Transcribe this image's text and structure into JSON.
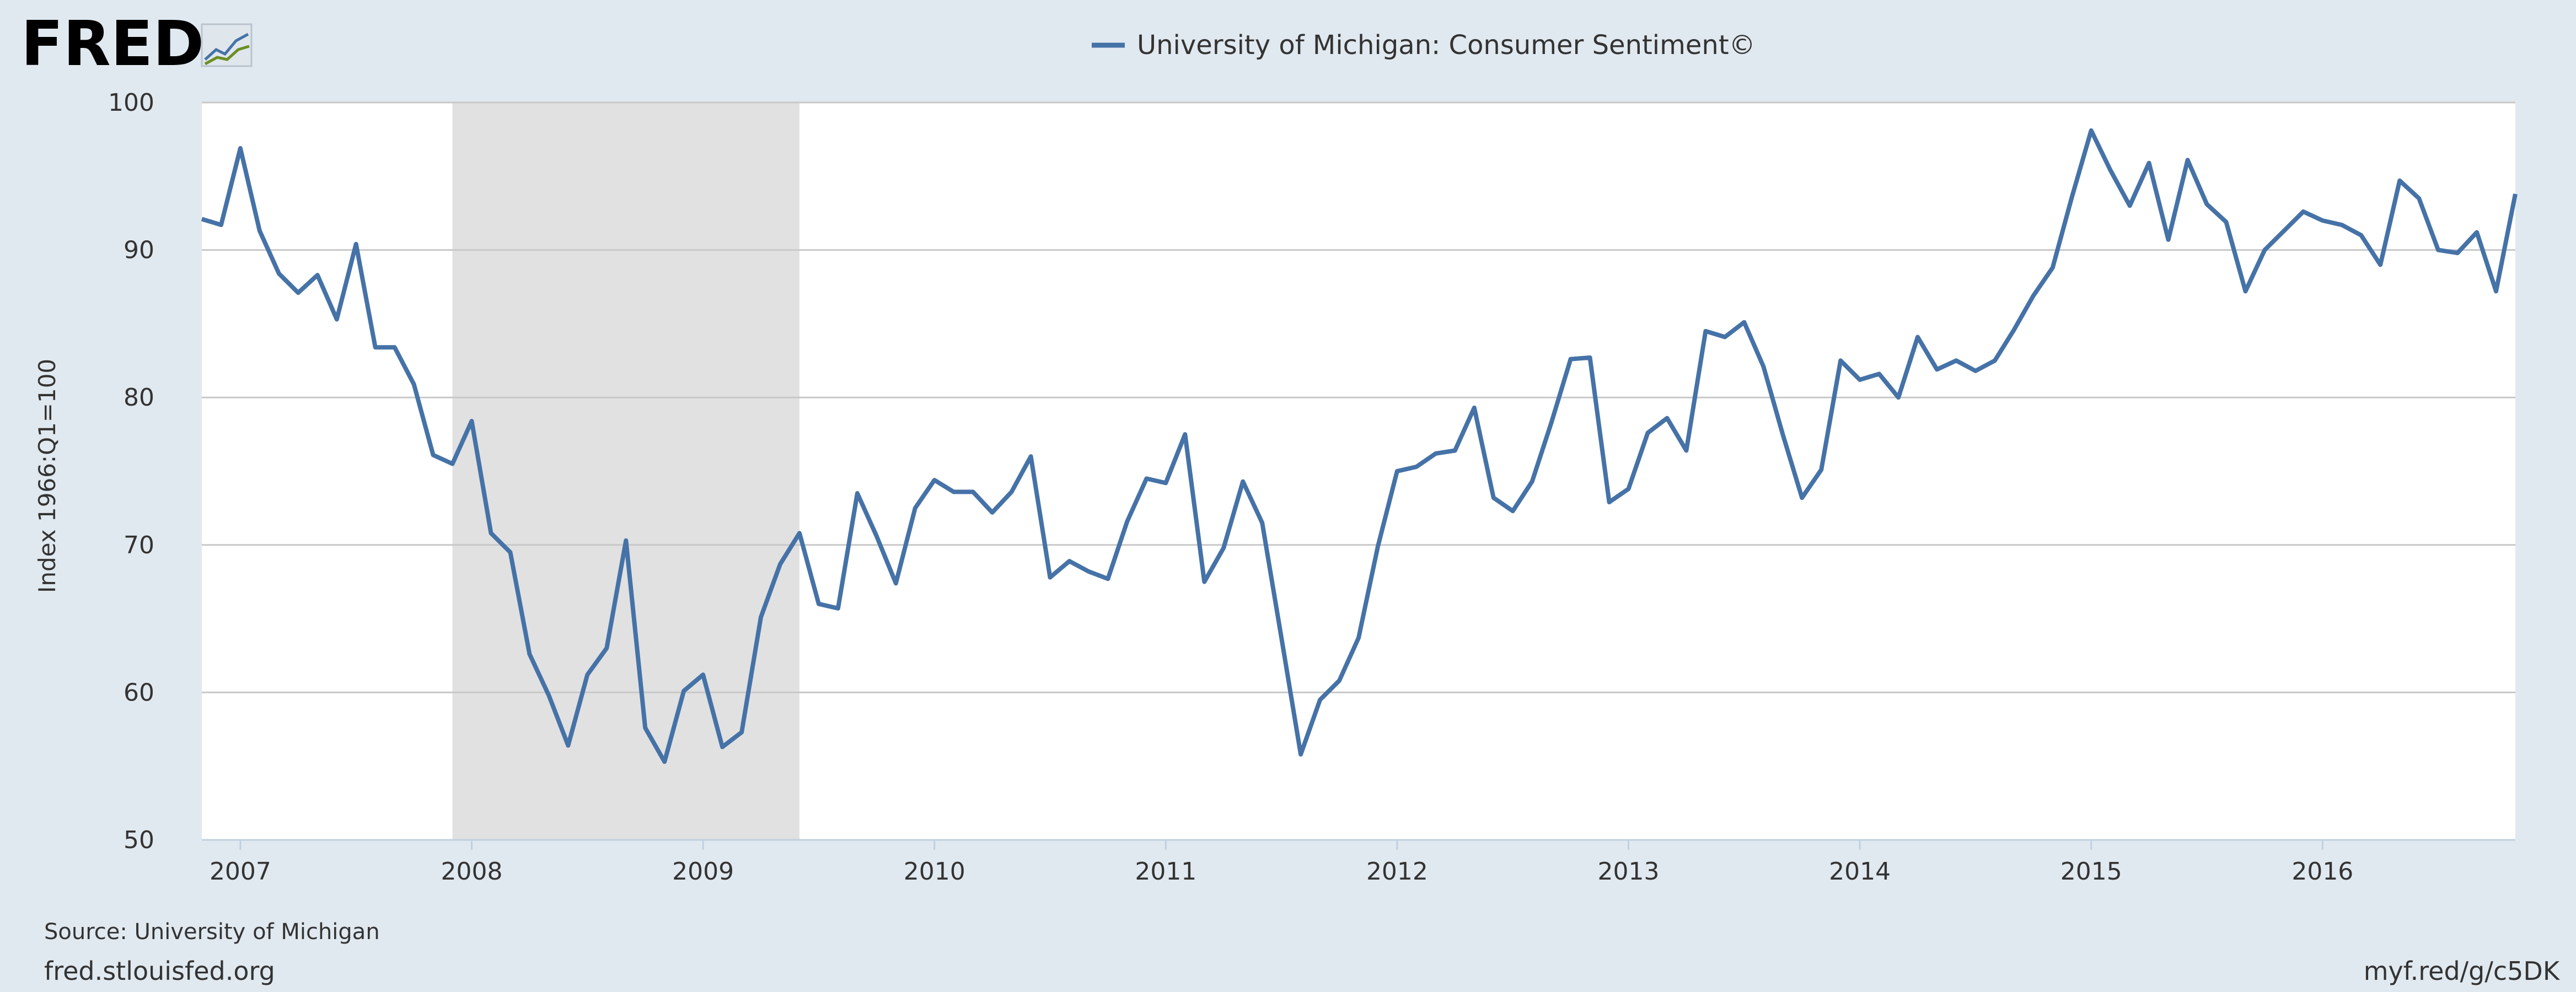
{
  "logo": {
    "text": "FRED",
    "icon": "fred-chart-icon"
  },
  "legend": {
    "label": "University of Michigan: Consumer Sentiment©"
  },
  "source": "Source: University of Michigan",
  "footer": {
    "left": "fred.stlouisfed.org",
    "right": "myf.red/g/c5DK"
  },
  "colors": {
    "background": "#e1e9f0",
    "plot_background": "#ffffff",
    "series": "#4572a7",
    "recession": "#e1e1e1",
    "grid": "#c8c8c8"
  },
  "chart_data": {
    "type": "line",
    "title": "",
    "xlabel": "",
    "ylabel": "Index 1966:Q1=100",
    "ylim": [
      50,
      100
    ],
    "xlim": [
      "2006-11",
      "2016-11"
    ],
    "yticks": [
      50,
      60,
      70,
      80,
      90,
      100
    ],
    "xticks": [
      "2007",
      "2008",
      "2009",
      "2010",
      "2011",
      "2012",
      "2013",
      "2014",
      "2015",
      "2016"
    ],
    "grid": true,
    "legend_position": "top-center",
    "recessions": [
      {
        "start": "2007-12",
        "end": "2009-06"
      }
    ],
    "series": [
      {
        "name": "University of Michigan: Consumer Sentiment©",
        "x": [
          "2006-11",
          "2006-12",
          "2007-01",
          "2007-02",
          "2007-03",
          "2007-04",
          "2007-05",
          "2007-06",
          "2007-07",
          "2007-08",
          "2007-09",
          "2007-10",
          "2007-11",
          "2007-12",
          "2008-01",
          "2008-02",
          "2008-03",
          "2008-04",
          "2008-05",
          "2008-06",
          "2008-07",
          "2008-08",
          "2008-09",
          "2008-10",
          "2008-11",
          "2008-12",
          "2009-01",
          "2009-02",
          "2009-03",
          "2009-04",
          "2009-05",
          "2009-06",
          "2009-07",
          "2009-08",
          "2009-09",
          "2009-10",
          "2009-11",
          "2009-12",
          "2010-01",
          "2010-02",
          "2010-03",
          "2010-04",
          "2010-05",
          "2010-06",
          "2010-07",
          "2010-08",
          "2010-09",
          "2010-10",
          "2010-11",
          "2010-12",
          "2011-01",
          "2011-02",
          "2011-03",
          "2011-04",
          "2011-05",
          "2011-06",
          "2011-07",
          "2011-08",
          "2011-09",
          "2011-10",
          "2011-11",
          "2011-12",
          "2012-01",
          "2012-02",
          "2012-03",
          "2012-04",
          "2012-05",
          "2012-06",
          "2012-07",
          "2012-08",
          "2012-09",
          "2012-10",
          "2012-11",
          "2012-12",
          "2013-01",
          "2013-02",
          "2013-03",
          "2013-04",
          "2013-05",
          "2013-06",
          "2013-07",
          "2013-08",
          "2013-09",
          "2013-10",
          "2013-11",
          "2013-12",
          "2014-01",
          "2014-02",
          "2014-03",
          "2014-04",
          "2014-05",
          "2014-06",
          "2014-07",
          "2014-08",
          "2014-09",
          "2014-10",
          "2014-11",
          "2014-12",
          "2015-01",
          "2015-02",
          "2015-03",
          "2015-04",
          "2015-05",
          "2015-06",
          "2015-07",
          "2015-08",
          "2015-09",
          "2015-10",
          "2015-11",
          "2015-12",
          "2016-01",
          "2016-02",
          "2016-03",
          "2016-04",
          "2016-05",
          "2016-06",
          "2016-07",
          "2016-08",
          "2016-09",
          "2016-10",
          "2016-11"
        ],
        "y": [
          92.1,
          91.7,
          96.9,
          91.3,
          88.4,
          87.1,
          88.3,
          85.3,
          90.4,
          83.4,
          83.4,
          80.9,
          76.1,
          75.5,
          78.4,
          70.8,
          69.5,
          62.6,
          59.8,
          56.4,
          61.2,
          63.0,
          70.3,
          57.6,
          55.3,
          60.1,
          61.2,
          56.3,
          57.3,
          65.1,
          68.7,
          70.8,
          66.0,
          65.7,
          73.5,
          70.6,
          67.4,
          72.5,
          74.4,
          73.6,
          73.6,
          72.2,
          73.6,
          76.0,
          67.8,
          68.9,
          68.2,
          67.7,
          71.6,
          74.5,
          74.2,
          77.5,
          67.5,
          69.8,
          74.3,
          71.5,
          63.7,
          55.8,
          59.5,
          60.8,
          63.7,
          69.9,
          75.0,
          75.3,
          76.2,
          76.4,
          79.3,
          73.2,
          72.3,
          74.3,
          78.3,
          82.6,
          82.7,
          72.9,
          73.8,
          77.6,
          78.6,
          76.4,
          84.5,
          84.1,
          85.1,
          82.1,
          77.5,
          73.2,
          75.1,
          82.5,
          81.2,
          81.6,
          80.0,
          84.1,
          81.9,
          82.5,
          81.8,
          82.5,
          84.6,
          86.9,
          88.8,
          93.6,
          98.1,
          95.4,
          93.0,
          95.9,
          90.7,
          96.1,
          93.1,
          91.9,
          87.2,
          90.0,
          91.3,
          92.6,
          92.0,
          91.7,
          91.0,
          89.0,
          94.7,
          93.5,
          90.0,
          89.8,
          91.2,
          87.2,
          93.8
        ]
      }
    ]
  }
}
